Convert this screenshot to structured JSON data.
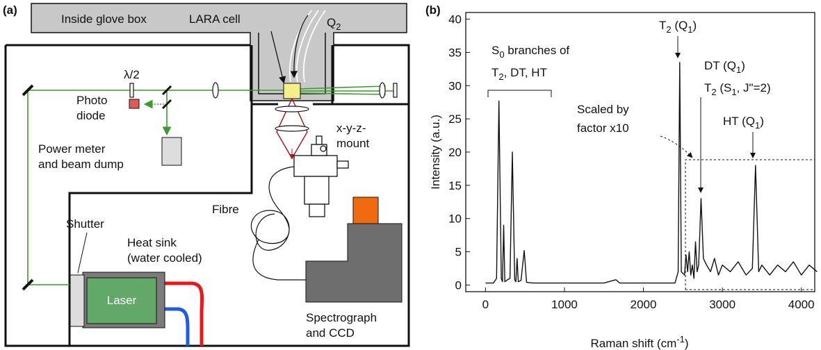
{
  "panel_a": {
    "label": "(a)",
    "glove_box": "Inside glove box",
    "cell": "LARA cell",
    "gas": [
      "Q",
      "2"
    ],
    "waveplate": "λ/2",
    "photodiode": [
      "Photo",
      "diode"
    ],
    "power_meter": [
      "Power meter",
      "and beam dump"
    ],
    "mount": [
      "x-y-z-",
      "mount"
    ],
    "fibre": "Fibre",
    "shutter": "Shutter",
    "heat_sink": [
      "Heat sink",
      "(water cooled)"
    ],
    "laser": "Laser",
    "spectrograph": [
      "Spectrograph",
      "and CCD"
    ]
  },
  "chart_data": {
    "type": "line",
    "panel_label": "(b)",
    "x_label": [
      "Raman shift (cm",
      "-1",
      ")"
    ],
    "y_label": "Intensity (a.u.)",
    "annotations": {
      "s0": [
        "S",
        "0",
        " branches of"
      ],
      "s0_species": [
        "T",
        "2",
        ", DT, HT"
      ],
      "t2q1": [
        "T",
        "2",
        " (Q",
        "1",
        ")"
      ],
      "dtq1": [
        "DT (Q",
        "1",
        ")"
      ],
      "t2s1": [
        "T",
        "2",
        " (S",
        "1",
        ", J\"=2)"
      ],
      "scaled": [
        "Scaled by",
        "factor x10"
      ],
      "htq1": [
        "HT (Q",
        "1",
        ")"
      ]
    },
    "xlim": [
      -250,
      4170
    ],
    "ylim": [
      -1,
      41
    ],
    "xticks": [
      0,
      1000,
      2000,
      3000,
      4000
    ],
    "yticks": [
      0,
      5,
      10,
      15,
      20,
      25,
      30,
      35,
      40
    ],
    "x": [
      0,
      100,
      140,
      170,
      200,
      215,
      230,
      245,
      280,
      310,
      340,
      370,
      385,
      400,
      415,
      450,
      490,
      520,
      600,
      800,
      1000,
      1500,
      1650,
      1700,
      2000,
      2300,
      2400,
      2440,
      2460,
      2480,
      2520,
      2540,
      2560,
      2580,
      2600,
      2620,
      2640,
      2660,
      2680,
      2700,
      2730,
      2760,
      2800,
      2850,
      2900,
      2950,
      3000,
      3100,
      3200,
      3300,
      3380,
      3420,
      3460,
      3500,
      3600,
      3700,
      3800,
      3900,
      4000,
      4100,
      4200
    ],
    "series": [
      {
        "color": "#111111",
        "values": [
          0.3,
          0.3,
          1,
          27.7,
          1,
          0.5,
          9,
          0.5,
          0.8,
          1,
          20,
          0.8,
          0.5,
          4,
          0.5,
          0.7,
          5.2,
          0.4,
          0.3,
          0.3,
          0.3,
          0.3,
          0.8,
          0.3,
          0.3,
          0.3,
          0.3,
          2,
          33.5,
          2,
          1.5,
          4.5,
          2,
          5,
          1.5,
          3,
          1,
          6.5,
          2,
          3,
          13,
          4,
          3,
          2,
          4,
          1.5,
          3,
          2,
          3.5,
          1.5,
          2.5,
          18,
          2,
          3,
          1.5,
          3,
          2,
          3.5,
          1.5,
          3,
          2
        ]
      }
    ]
  }
}
